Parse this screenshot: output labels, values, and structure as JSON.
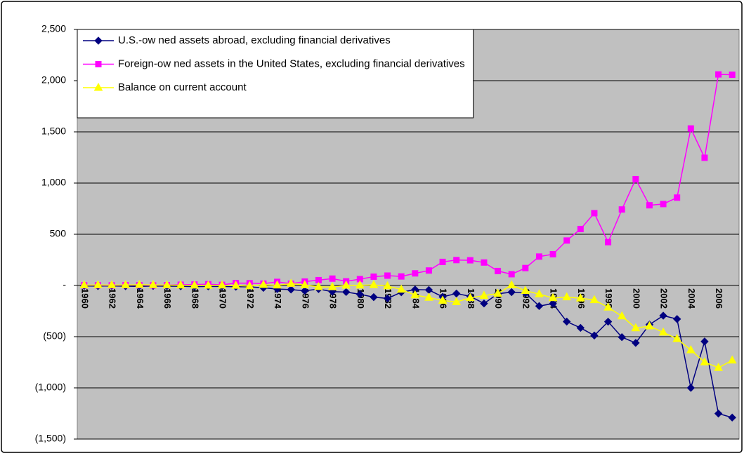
{
  "chart_data": {
    "type": "line",
    "categories": [
      "1960",
      null,
      "1962",
      null,
      "1964",
      null,
      "1966",
      null,
      "1968",
      null,
      "1970",
      null,
      "1972",
      null,
      "1974",
      null,
      "1976",
      null,
      "1978",
      null,
      "1980",
      null,
      "1982",
      null,
      "1984",
      null,
      "1986",
      null,
      "1988",
      null,
      "1990",
      null,
      "1992",
      null,
      "1994",
      null,
      "1996",
      null,
      "1998",
      null,
      "2000",
      null,
      "2002",
      null,
      "2004",
      null,
      "2006",
      null
    ],
    "series": [
      {
        "name": "U.S.-ow ned assets abroad, excluding financial derivatives",
        "color": "#000080",
        "marker": "diamond",
        "values": [
          -4,
          -6,
          -4,
          -7,
          -9,
          -5,
          -7,
          -8,
          -11,
          -9,
          -9,
          -12,
          -14,
          -23,
          -35,
          -40,
          -52,
          -35,
          -61,
          -64,
          -86,
          -114,
          -127,
          -66,
          -40,
          -44,
          -111,
          -79,
          -106,
          -176,
          -81,
          -65,
          -74,
          -201,
          -177,
          -353,
          -414,
          -489,
          -354,
          -505,
          -561,
          -382,
          -295,
          -328,
          -1000,
          -547,
          -1251,
          -1290
        ]
      },
      {
        "name": "Foreign-ow ned assets in the United States, excluding financial derivatives",
        "color": "#ff00ff",
        "marker": "square",
        "values": [
          2,
          2,
          1,
          3,
          3,
          1,
          3,
          7,
          9,
          12,
          6,
          23,
          22,
          18,
          35,
          17,
          38,
          52,
          67,
          40,
          62,
          86,
          96,
          88,
          118,
          146,
          230,
          248,
          246,
          224,
          141,
          110,
          170,
          282,
          305,
          439,
          551,
          706,
          423,
          742,
          1038,
          783,
          795,
          858,
          1533,
          1247,
          2061,
          2058
        ]
      },
      {
        "name": "Balance on current account",
        "color": "#ffff00",
        "marker": "triangle",
        "values": [
          3,
          4,
          3,
          4,
          7,
          5,
          3,
          2,
          1,
          0,
          2,
          -1,
          -6,
          7,
          2,
          18,
          4,
          -14,
          -15,
          0,
          2,
          5,
          -6,
          -39,
          -94,
          -118,
          -147,
          -161,
          -121,
          -99,
          -79,
          3,
          -51,
          -85,
          -122,
          -114,
          -125,
          -141,
          -214,
          -300,
          -416,
          -397,
          -458,
          -521,
          -631,
          -749,
          -803,
          -731
        ]
      }
    ],
    "ylim": [
      -1500,
      2500
    ],
    "yticks": [
      {
        "value": -1500,
        "label": "(1,500)"
      },
      {
        "value": -1000,
        "label": "(1,000)"
      },
      {
        "value": -500,
        "label": "(500)"
      },
      {
        "value": 0,
        "label": "-"
      },
      500,
      {
        "value": 1000,
        "label": "1,000"
      },
      {
        "value": 1500,
        "label": "1,500"
      },
      {
        "value": 2000,
        "label": "2,000"
      },
      {
        "value": 2500,
        "label": "2,500"
      }
    ],
    "grid": true,
    "legend": "top-left",
    "plot_background": "#c0c0c0"
  }
}
